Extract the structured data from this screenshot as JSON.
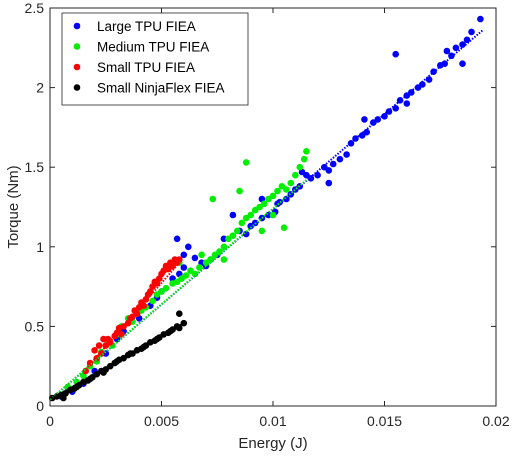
{
  "chart_data": {
    "type": "scatter",
    "xlabel": "Energy (J)",
    "ylabel": "Torque (Nm)",
    "xlim": [
      0,
      0.02
    ],
    "ylim": [
      0,
      2.5
    ],
    "xticks": [
      0,
      0.005,
      0.01,
      0.015,
      0.02
    ],
    "xtick_labels": [
      "0",
      "0.005",
      "0.01",
      "0.015",
      "0.02"
    ],
    "yticks": [
      0,
      0.5,
      1,
      1.5,
      2,
      2.5
    ],
    "ytick_labels": [
      "0",
      "0.5",
      "1",
      "1.5",
      "2",
      "2.5"
    ],
    "grid": false,
    "legend_position": "top-left",
    "series": [
      {
        "name": "Large TPU FIEA",
        "color": "#0000ff",
        "points": [
          [
            0.0005,
            0.06
          ],
          [
            0.001,
            0.09
          ],
          [
            0.0015,
            0.14
          ],
          [
            0.002,
            0.22
          ],
          [
            0.0025,
            0.33
          ],
          [
            0.003,
            0.42
          ],
          [
            0.0033,
            0.47
          ],
          [
            0.0036,
            0.53
          ],
          [
            0.004,
            0.55
          ],
          [
            0.0045,
            0.63
          ],
          [
            0.0048,
            0.68
          ],
          [
            0.005,
            0.72
          ],
          [
            0.0055,
            0.8
          ],
          [
            0.0058,
            0.83
          ],
          [
            0.006,
            0.87
          ],
          [
            0.0057,
            1.05
          ],
          [
            0.006,
            0.95
          ],
          [
            0.0062,
            1.0
          ],
          [
            0.0065,
            0.93
          ],
          [
            0.0068,
            0.9
          ],
          [
            0.007,
            0.88
          ],
          [
            0.0072,
            0.92
          ],
          [
            0.0075,
            0.95
          ],
          [
            0.0078,
            1.05
          ],
          [
            0.0082,
            1.2
          ],
          [
            0.0085,
            1.1
          ],
          [
            0.0088,
            1.08
          ],
          [
            0.009,
            1.13
          ],
          [
            0.0092,
            1.15
          ],
          [
            0.0095,
            1.18
          ],
          [
            0.0098,
            1.2
          ],
          [
            0.0101,
            1.22
          ],
          [
            0.0103,
            1.28
          ],
          [
            0.0106,
            1.3
          ],
          [
            0.0108,
            1.33
          ],
          [
            0.011,
            1.36
          ],
          [
            0.0112,
            1.38
          ],
          [
            0.0115,
            1.45
          ],
          [
            0.0117,
            1.43
          ],
          [
            0.012,
            1.45
          ],
          [
            0.0123,
            1.5
          ],
          [
            0.0125,
            1.48
          ],
          [
            0.0127,
            1.52
          ],
          [
            0.013,
            1.55
          ],
          [
            0.0133,
            1.58
          ],
          [
            0.0135,
            1.65
          ],
          [
            0.0137,
            1.68
          ],
          [
            0.014,
            1.7
          ],
          [
            0.0142,
            1.72
          ],
          [
            0.0145,
            1.78
          ],
          [
            0.0147,
            1.8
          ],
          [
            0.015,
            1.82
          ],
          [
            0.0152,
            1.85
          ],
          [
            0.0155,
            1.87
          ],
          [
            0.0157,
            1.92
          ],
          [
            0.016,
            1.95
          ],
          [
            0.0162,
            1.97
          ],
          [
            0.0165,
            2.0
          ],
          [
            0.0167,
            2.02
          ],
          [
            0.017,
            2.05
          ],
          [
            0.0172,
            2.1
          ],
          [
            0.0175,
            2.14
          ],
          [
            0.0177,
            2.15
          ],
          [
            0.018,
            2.2
          ],
          [
            0.0182,
            2.25
          ],
          [
            0.0185,
            2.27
          ],
          [
            0.0187,
            2.3
          ],
          [
            0.0189,
            2.35
          ],
          [
            0.0193,
            2.43
          ],
          [
            0.0155,
            2.21
          ],
          [
            0.0178,
            2.23
          ],
          [
            0.0185,
            2.15
          ],
          [
            0.0125,
            1.4
          ],
          [
            0.0113,
            1.47
          ],
          [
            0.0102,
            1.27
          ],
          [
            0.0095,
            1.3
          ],
          [
            0.0141,
            1.8
          ],
          [
            0.016,
            1.9
          ]
        ],
        "trend": [
          [
            0,
            0.04
          ],
          [
            0.0194,
            2.36
          ]
        ]
      },
      {
        "name": "Medium TPU FIEA",
        "color": "#00ee00",
        "points": [
          [
            0.0005,
            0.07
          ],
          [
            0.0008,
            0.12
          ],
          [
            0.0012,
            0.15
          ],
          [
            0.0015,
            0.19
          ],
          [
            0.0018,
            0.25
          ],
          [
            0.0021,
            0.28
          ],
          [
            0.0023,
            0.34
          ],
          [
            0.0026,
            0.4
          ],
          [
            0.0028,
            0.38
          ],
          [
            0.003,
            0.45
          ],
          [
            0.0032,
            0.5
          ],
          [
            0.0035,
            0.55
          ],
          [
            0.0037,
            0.53
          ],
          [
            0.0039,
            0.58
          ],
          [
            0.0041,
            0.6
          ],
          [
            0.0043,
            0.62
          ],
          [
            0.0046,
            0.66
          ],
          [
            0.0048,
            0.7
          ],
          [
            0.005,
            0.72
          ],
          [
            0.0052,
            0.74
          ],
          [
            0.0055,
            0.77
          ],
          [
            0.0057,
            0.78
          ],
          [
            0.0059,
            0.8
          ],
          [
            0.0061,
            0.82
          ],
          [
            0.0063,
            0.85
          ],
          [
            0.0065,
            0.83
          ],
          [
            0.0067,
            0.87
          ],
          [
            0.007,
            0.9
          ],
          [
            0.0072,
            0.92
          ],
          [
            0.0074,
            0.95
          ],
          [
            0.0076,
            0.97
          ],
          [
            0.0078,
            1.0
          ],
          [
            0.008,
            1.05
          ],
          [
            0.0082,
            1.07
          ],
          [
            0.0084,
            1.1
          ],
          [
            0.0086,
            1.15
          ],
          [
            0.0088,
            1.18
          ],
          [
            0.009,
            1.2
          ],
          [
            0.0092,
            1.23
          ],
          [
            0.0094,
            1.25
          ],
          [
            0.0096,
            1.27
          ],
          [
            0.0098,
            1.3
          ],
          [
            0.01,
            1.32
          ],
          [
            0.0102,
            1.35
          ],
          [
            0.0104,
            1.38
          ],
          [
            0.0106,
            1.36
          ],
          [
            0.0108,
            1.4
          ],
          [
            0.011,
            1.45
          ],
          [
            0.0112,
            1.5
          ],
          [
            0.0114,
            1.55
          ],
          [
            0.0115,
            1.6
          ],
          [
            0.0088,
            1.53
          ],
          [
            0.0073,
            1.3
          ],
          [
            0.0095,
            1.1
          ],
          [
            0.0078,
            0.92
          ],
          [
            0.0068,
            0.95
          ],
          [
            0.0058,
            0.9
          ],
          [
            0.0105,
            1.12
          ],
          [
            0.01,
            1.2
          ],
          [
            0.0085,
            1.35
          ]
        ],
        "trend": [
          [
            0,
            0.04
          ],
          [
            0.0115,
            1.42
          ]
        ]
      },
      {
        "name": "Small TPU FIEA",
        "color": "#ff0000",
        "points": [
          [
            0.0016,
            0.22
          ],
          [
            0.0018,
            0.27
          ],
          [
            0.002,
            0.35
          ],
          [
            0.0022,
            0.38
          ],
          [
            0.0024,
            0.42
          ],
          [
            0.0025,
            0.38
          ],
          [
            0.0027,
            0.4
          ],
          [
            0.0029,
            0.44
          ],
          [
            0.003,
            0.46
          ],
          [
            0.0032,
            0.45
          ],
          [
            0.0033,
            0.5
          ],
          [
            0.0035,
            0.52
          ],
          [
            0.0036,
            0.55
          ],
          [
            0.0038,
            0.6
          ],
          [
            0.0039,
            0.58
          ],
          [
            0.004,
            0.62
          ],
          [
            0.0042,
            0.63
          ],
          [
            0.0043,
            0.67
          ],
          [
            0.0044,
            0.7
          ],
          [
            0.0045,
            0.72
          ],
          [
            0.0046,
            0.75
          ],
          [
            0.0047,
            0.78
          ],
          [
            0.0048,
            0.77
          ],
          [
            0.0049,
            0.8
          ],
          [
            0.005,
            0.83
          ],
          [
            0.0051,
            0.85
          ],
          [
            0.0052,
            0.88
          ],
          [
            0.0053,
            0.86
          ],
          [
            0.0054,
            0.9
          ],
          [
            0.0055,
            0.88
          ],
          [
            0.0056,
            0.92
          ],
          [
            0.0057,
            0.9
          ],
          [
            0.0058,
            0.92
          ],
          [
            0.0021,
            0.3
          ],
          [
            0.0023,
            0.33
          ],
          [
            0.0026,
            0.42
          ],
          [
            0.0031,
            0.49
          ],
          [
            0.0037,
            0.56
          ],
          [
            0.0041,
            0.65
          ]
        ],
        "trend": [
          [
            0.0016,
            0.23
          ],
          [
            0.0058,
            0.9
          ]
        ]
      },
      {
        "name": "Small NinjaFlex FIEA",
        "color": "#000000",
        "points": [
          [
            0.0001,
            0.05
          ],
          [
            0.0003,
            0.06
          ],
          [
            0.0005,
            0.07
          ],
          [
            0.0007,
            0.08
          ],
          [
            0.0009,
            0.1
          ],
          [
            0.0011,
            0.11
          ],
          [
            0.0013,
            0.13
          ],
          [
            0.0015,
            0.15
          ],
          [
            0.0017,
            0.16
          ],
          [
            0.0019,
            0.18
          ],
          [
            0.0021,
            0.2
          ],
          [
            0.0023,
            0.22
          ],
          [
            0.0025,
            0.23
          ],
          [
            0.0027,
            0.25
          ],
          [
            0.0029,
            0.27
          ],
          [
            0.0031,
            0.29
          ],
          [
            0.0033,
            0.3
          ],
          [
            0.0035,
            0.32
          ],
          [
            0.0037,
            0.33
          ],
          [
            0.0039,
            0.35
          ],
          [
            0.0041,
            0.36
          ],
          [
            0.0043,
            0.38
          ],
          [
            0.0045,
            0.4
          ],
          [
            0.0047,
            0.41
          ],
          [
            0.0049,
            0.43
          ],
          [
            0.0051,
            0.45
          ],
          [
            0.0053,
            0.46
          ],
          [
            0.0055,
            0.48
          ],
          [
            0.0057,
            0.5
          ],
          [
            0.0058,
            0.49
          ],
          [
            0.006,
            0.52
          ],
          [
            0.0058,
            0.58
          ],
          [
            0.0006,
            0.05
          ],
          [
            0.0012,
            0.12
          ],
          [
            0.0018,
            0.17
          ],
          [
            0.0024,
            0.21
          ],
          [
            0.003,
            0.28
          ],
          [
            0.0036,
            0.33
          ],
          [
            0.0042,
            0.37
          ],
          [
            0.0048,
            0.42
          ],
          [
            0.0054,
            0.47
          ]
        ],
        "trend": [
          [
            0.0001,
            0.05
          ],
          [
            0.006,
            0.52
          ]
        ]
      }
    ]
  }
}
